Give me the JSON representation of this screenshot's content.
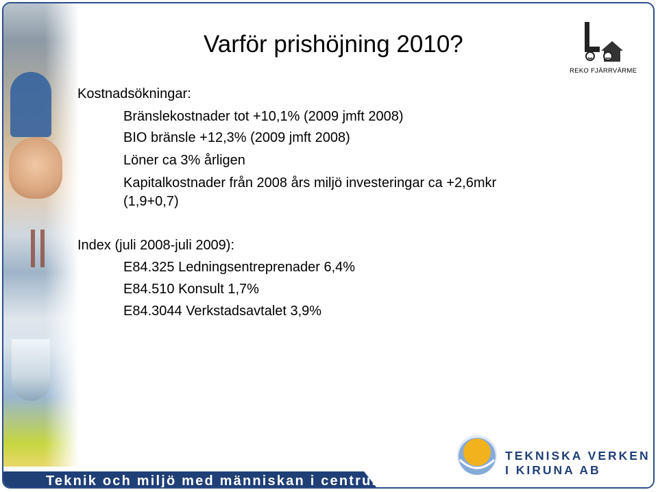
{
  "slide": {
    "title": "Varför prishöjning 2010?",
    "sections": {
      "costs_heading": "Kostnadsökningar:",
      "costs_items": [
        "Bränslekostnader tot +10,1% (2009 jmft 2008)",
        "BIO bränsle +12,3% (2009 jmft 2008)",
        "Löner ca 3% årligen",
        "Kapitalkostnader från 2008 års miljö investeringar ca +2,6mkr",
        "(1,9+0,7)"
      ],
      "index_heading": "Index (juli 2008-juli 2009):",
      "index_items": [
        "E84.325 Ledningsentreprenader 6,4%",
        "E84.510 Konsult 1,7%",
        "E84.3044 Verkstadsavtalet 3,9%"
      ]
    }
  },
  "logos": {
    "reko_caption": "REKO FJÄRRVÄRME",
    "tekniska_line1": "TEKNISKA VERKEN",
    "tekniska_line2": "I KIRUNA AB"
  },
  "footer": {
    "slogan": "Teknik och miljö med människan i centrum"
  },
  "colors": {
    "frame": "#2a4e8a",
    "footer_bar": "#1f3f77",
    "brand_text": "#1f3f77",
    "sun_yellow": "#f2b21d",
    "sun_blue": "#3a78c2"
  }
}
